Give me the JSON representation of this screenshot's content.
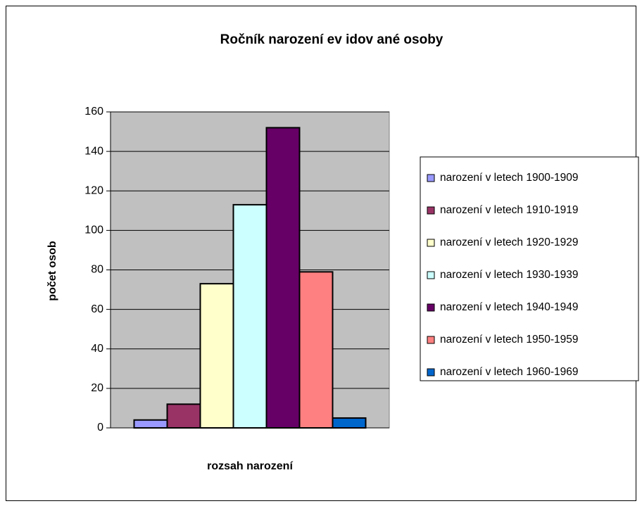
{
  "chart_data": {
    "type": "bar",
    "title": "Ročník narození ev idov ané osoby",
    "x_label": "rozsah narození",
    "y_label": "počet osob",
    "categories": [
      null
    ],
    "series": [
      {
        "name": "narození v letech 1900-1909",
        "color": "#9999ff",
        "values": [
          4
        ]
      },
      {
        "name": "narození v letech 1910-1919",
        "color": "#993366",
        "values": [
          12
        ]
      },
      {
        "name": "narození v letech 1920-1929",
        "color": "#ffffcc",
        "values": [
          73
        ]
      },
      {
        "name": "narození v letech 1930-1939",
        "color": "#ccffff",
        "values": [
          113
        ]
      },
      {
        "name": "narození v letech 1940-1949",
        "color": "#660066",
        "values": [
          152
        ]
      },
      {
        "name": "narození v letech 1950-1959",
        "color": "#ff8080",
        "values": [
          79
        ]
      },
      {
        "name": "narození v letech 1960-1969",
        "color": "#0066cc",
        "values": [
          5
        ]
      }
    ],
    "ylim": [
      0,
      160
    ],
    "yticks": [
      0,
      20,
      40,
      60,
      80,
      100,
      120,
      140,
      160
    ],
    "grid": true,
    "legend": "right"
  }
}
